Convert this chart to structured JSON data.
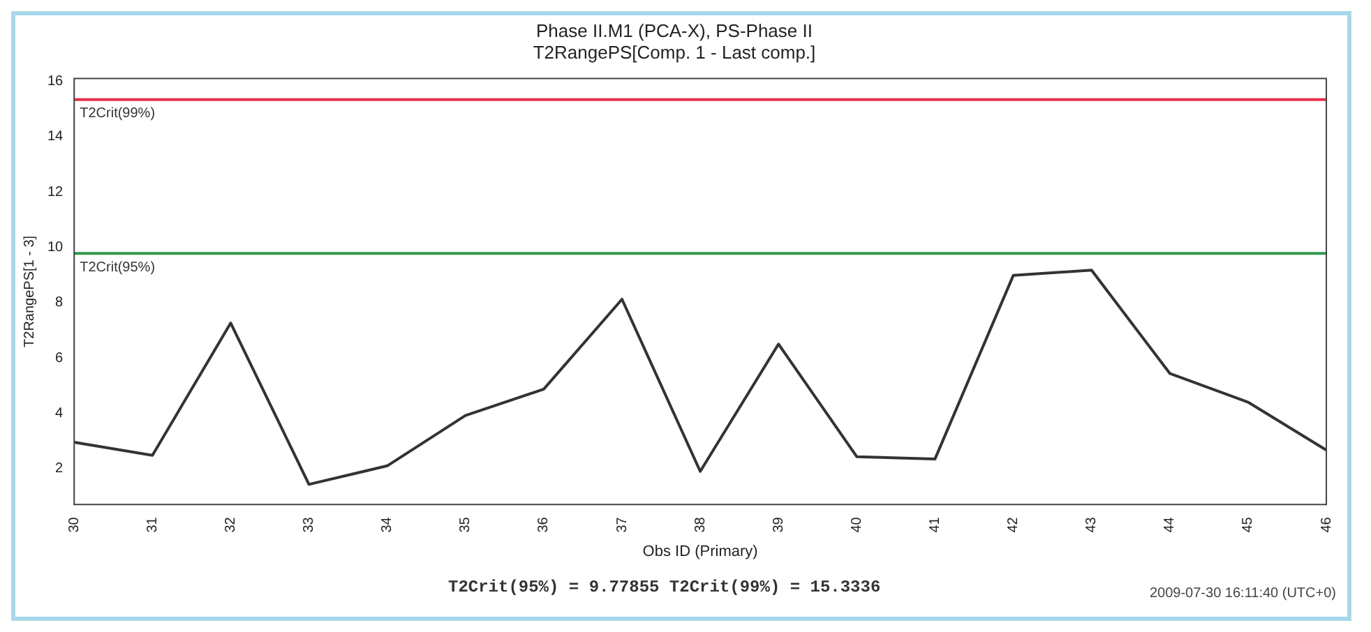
{
  "chart_data": {
    "type": "line",
    "title": "Phase II.M1 (PCA-X), PS-Phase II",
    "subtitle": "T2RangePS[Comp. 1 - Last comp.]",
    "xlabel": "Obs ID (Primary)",
    "ylabel": "T2RangePS[1 - 3]",
    "categories": [
      "30",
      "31",
      "32",
      "33",
      "34",
      "35",
      "36",
      "37",
      "38",
      "39",
      "40",
      "41",
      "42",
      "43",
      "44",
      "45",
      "46"
    ],
    "series": [
      {
        "color": "#333333",
        "values": [
          2.95,
          2.48,
          7.26,
          1.43,
          2.1,
          3.92,
          4.87,
          8.12,
          1.9,
          6.5,
          2.43,
          2.35,
          8.98,
          9.17,
          5.44,
          4.4,
          2.67
        ]
      }
    ],
    "ylim": [
      0.7,
      16.1
    ],
    "yticks": [
      2,
      4,
      6,
      8,
      10,
      12,
      14,
      16
    ],
    "grid": false,
    "legend": false,
    "marker": "none",
    "line_style": "solid",
    "ref_lines": [
      {
        "axis": "y",
        "value": 15.3336,
        "label": "T2Crit(99%)",
        "color": "#e8304a"
      },
      {
        "axis": "y",
        "value": 9.77855,
        "label": "T2Crit(95%)",
        "color": "#2e9a4a"
      }
    ],
    "annotations": [
      "T2Crit(95%) = 9.77855 T2Crit(99%) = 15.3336",
      "2009-07-30 16:11:40 (UTC+0)"
    ]
  }
}
